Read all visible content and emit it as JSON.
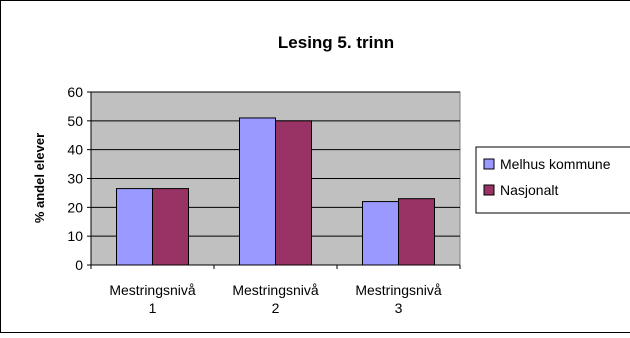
{
  "chart_data": {
    "type": "bar",
    "title": "Lesing 5. trinn",
    "xlabel": "",
    "ylabel": "% andel elever",
    "categories": [
      [
        "Mestringsnivå",
        "1"
      ],
      [
        "Mestringsnivå",
        "2"
      ],
      [
        "Mestringsnivå",
        "3"
      ]
    ],
    "series": [
      {
        "name": "Melhus kommune",
        "values": [
          26.5,
          51,
          22
        ],
        "color": "#9999ff"
      },
      {
        "name": "Nasjonalt",
        "values": [
          26.5,
          50,
          23
        ],
        "color": "#993366"
      }
    ],
    "ylim": [
      0,
      60
    ],
    "yticks": [
      0,
      10,
      20,
      30,
      40,
      50,
      60
    ],
    "grid": true,
    "plot_background": "#c0c0c0",
    "legend_position": "right"
  }
}
